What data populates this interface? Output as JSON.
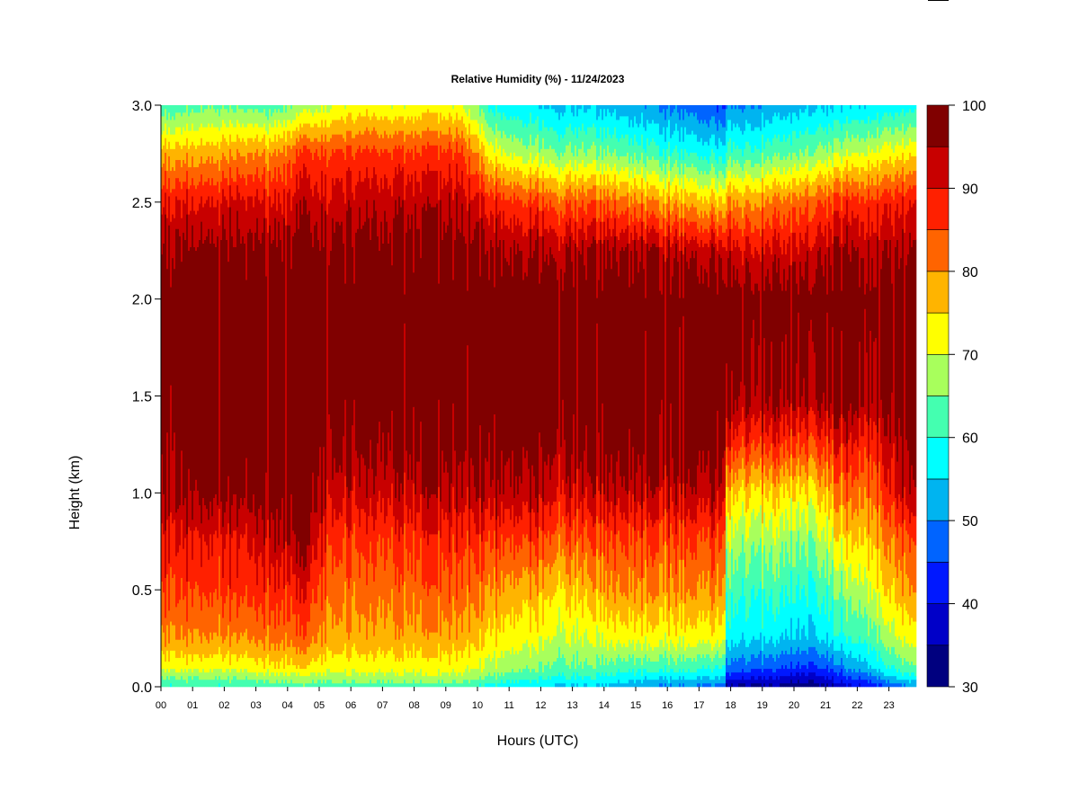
{
  "chart_data": {
    "type": "heatmap",
    "title": "Relative Humidity (%) - 11/24/2023",
    "xlabel": "Hours (UTC)",
    "ylabel": "Height (km)",
    "xlim": [
      0,
      23.86
    ],
    "ylim": [
      0,
      3.0
    ],
    "x_tick_labels": [
      "00",
      "01",
      "02",
      "03",
      "04",
      "05",
      "06",
      "07",
      "08",
      "09",
      "10",
      "11",
      "12",
      "13",
      "14",
      "15",
      "16",
      "17",
      "18",
      "19",
      "20",
      "21",
      "22",
      "23"
    ],
    "y_ticks": [
      0.0,
      0.5,
      1.0,
      1.5,
      2.0,
      2.5,
      3.0
    ],
    "y_tick_labels": [
      "0.0",
      "0.5",
      "1.0",
      "1.5",
      "2.0",
      "2.5",
      "3.0"
    ],
    "colorbar": {
      "levels": [
        30,
        35,
        40,
        45,
        50,
        55,
        60,
        65,
        70,
        75,
        80,
        85,
        90,
        95,
        100
      ],
      "tick_values": [
        30,
        40,
        50,
        60,
        70,
        80,
        90,
        100
      ],
      "tick_labels": [
        "30",
        "40",
        "50",
        "60",
        "70",
        "80",
        "90",
        "100"
      ],
      "colors": [
        "#00007F",
        "#0000C8",
        "#0018FF",
        "#0064FF",
        "#00B4F0",
        "#00FFFF",
        "#44FFB0",
        "#A8FF5C",
        "#FFFF00",
        "#FFB400",
        "#FF6400",
        "#FF2000",
        "#C80000",
        "#800000"
      ]
    },
    "profile_times_hours": [
      0.5,
      1.5,
      2.5,
      3.5,
      4.5,
      5.5,
      6.5,
      7.5,
      8.5,
      9.5,
      10.5,
      11.5,
      12.5,
      13.5,
      14.5,
      15.5,
      16.5,
      17.5,
      18.5,
      19.5,
      20.5,
      21.5,
      22.5,
      23.5
    ],
    "profile_heights_km": [
      0,
      0.05,
      0.1,
      0.25,
      0.5,
      0.75,
      1.0,
      1.25,
      1.5,
      2.0,
      2.25,
      2.5,
      2.75,
      3.0
    ],
    "rh_percent": [
      [
        60,
        66,
        72,
        80,
        86,
        90,
        96,
        98,
        99,
        99,
        97,
        90,
        78,
        62
      ],
      [
        60,
        66,
        72,
        80,
        86,
        90,
        97,
        99,
        99,
        99,
        97,
        90,
        78,
        64
      ],
      [
        60,
        66,
        72,
        80,
        87,
        90,
        97,
        99,
        99,
        99,
        97,
        92,
        80,
        64
      ],
      [
        62,
        68,
        74,
        82,
        88,
        93,
        98,
        99,
        99,
        99,
        97,
        90,
        80,
        62
      ],
      [
        62,
        68,
        74,
        82,
        88,
        95,
        98,
        99,
        99,
        99,
        97,
        92,
        85,
        66
      ],
      [
        62,
        68,
        72,
        78,
        82,
        86,
        92,
        96,
        99,
        99,
        97,
        92,
        86,
        70
      ],
      [
        62,
        68,
        72,
        78,
        82,
        86,
        92,
        96,
        99,
        99,
        97,
        93,
        86,
        72
      ],
      [
        62,
        68,
        72,
        78,
        82,
        86,
        92,
        96,
        99,
        99,
        97,
        93,
        86,
        70
      ],
      [
        62,
        68,
        72,
        78,
        83,
        87,
        93,
        97,
        99,
        99,
        97,
        93,
        86,
        72
      ],
      [
        62,
        68,
        72,
        78,
        83,
        87,
        93,
        97,
        99,
        99,
        97,
        93,
        86,
        70
      ],
      [
        58,
        64,
        68,
        74,
        80,
        86,
        94,
        98,
        99,
        99,
        96,
        88,
        72,
        58
      ],
      [
        56,
        62,
        66,
        72,
        78,
        86,
        94,
        98,
        99,
        99,
        95,
        86,
        68,
        56
      ],
      [
        54,
        60,
        64,
        70,
        76,
        84,
        92,
        97,
        99,
        99,
        95,
        84,
        66,
        54
      ],
      [
        54,
        60,
        64,
        70,
        77,
        84,
        92,
        97,
        99,
        99,
        95,
        84,
        66,
        54
      ],
      [
        52,
        58,
        62,
        72,
        80,
        85,
        93,
        98,
        99,
        99,
        95,
        82,
        64,
        52
      ],
      [
        50,
        56,
        62,
        72,
        80,
        85,
        93,
        98,
        99,
        99,
        95,
        80,
        62,
        50
      ],
      [
        50,
        56,
        62,
        72,
        80,
        85,
        93,
        98,
        99,
        99,
        93,
        78,
        60,
        48
      ],
      [
        48,
        55,
        60,
        72,
        80,
        85,
        93,
        98,
        99,
        99,
        93,
        76,
        58,
        45
      ],
      [
        34,
        42,
        48,
        57,
        62,
        68,
        76,
        88,
        97,
        99,
        92,
        80,
        62,
        50
      ],
      [
        34,
        40,
        46,
        56,
        62,
        68,
        76,
        88,
        97,
        99,
        92,
        82,
        64,
        52
      ],
      [
        32,
        38,
        44,
        54,
        60,
        66,
        74,
        86,
        96,
        99,
        93,
        84,
        66,
        54
      ],
      [
        36,
        42,
        48,
        58,
        64,
        72,
        80,
        88,
        97,
        99,
        94,
        86,
        68,
        54
      ],
      [
        42,
        50,
        56,
        64,
        72,
        78,
        84,
        90,
        97,
        99,
        95,
        88,
        72,
        56
      ],
      [
        50,
        58,
        64,
        72,
        80,
        85,
        94,
        97,
        99,
        99,
        96,
        90,
        74,
        58
      ]
    ]
  }
}
